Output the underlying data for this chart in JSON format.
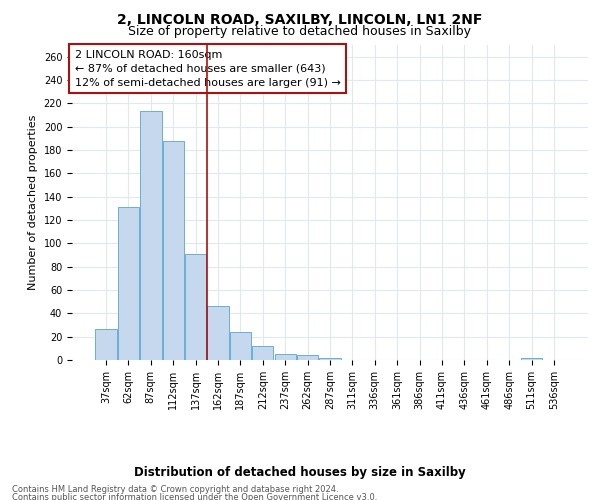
{
  "title_line1": "2, LINCOLN ROAD, SAXILBY, LINCOLN, LN1 2NF",
  "title_line2": "Size of property relative to detached houses in Saxilby",
  "xlabel": "Distribution of detached houses by size in Saxilby",
  "ylabel": "Number of detached properties",
  "bar_color": "#c5d8ee",
  "bar_edge_color": "#6baed6",
  "vline_color": "#aa1111",
  "vline_x_index": 5,
  "categories": [
    "37sqm",
    "62sqm",
    "87sqm",
    "112sqm",
    "137sqm",
    "162sqm",
    "187sqm",
    "212sqm",
    "237sqm",
    "262sqm",
    "287sqm",
    "311sqm",
    "336sqm",
    "361sqm",
    "386sqm",
    "411sqm",
    "436sqm",
    "461sqm",
    "486sqm",
    "511sqm",
    "536sqm"
  ],
  "values": [
    27,
    131,
    213,
    188,
    91,
    46,
    24,
    12,
    5,
    4,
    2,
    0,
    0,
    0,
    0,
    0,
    0,
    0,
    0,
    2,
    0
  ],
  "ylim": [
    0,
    270
  ],
  "yticks": [
    0,
    20,
    40,
    60,
    80,
    100,
    120,
    140,
    160,
    180,
    200,
    220,
    240,
    260
  ],
  "annotation_title": "2 LINCOLN ROAD: 160sqm",
  "annotation_line1": "← 87% of detached houses are smaller (643)",
  "annotation_line2": "12% of semi-detached houses are larger (91) →",
  "footer_line1": "Contains HM Land Registry data © Crown copyright and database right 2024.",
  "footer_line2": "Contains public sector information licensed under the Open Government Licence v3.0.",
  "background_color": "#ffffff",
  "plot_bg_color": "#ffffff",
  "grid_color": "#e0e8f0",
  "title_fontsize": 10,
  "subtitle_fontsize": 9,
  "tick_fontsize": 7,
  "ylabel_fontsize": 8,
  "xlabel_fontsize": 8.5,
  "footer_fontsize": 6,
  "annotation_fontsize": 8
}
